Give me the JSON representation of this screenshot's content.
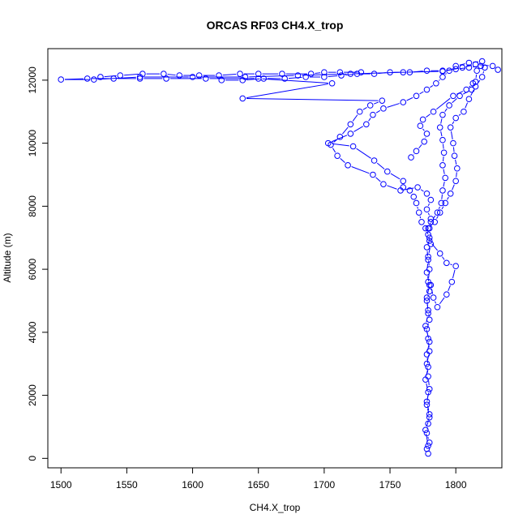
{
  "chart_data": {
    "type": "scatter",
    "title": "ORCAS RF03 CH4.X_trop",
    "xlabel": "CH4.X_trop",
    "ylabel": "Altitude (m)",
    "xlim": [
      1490,
      1835
    ],
    "ylim": [
      -300,
      13000
    ],
    "xticks": [
      1500,
      1550,
      1600,
      1650,
      1700,
      1750,
      1800
    ],
    "yticks": [
      0,
      2000,
      4000,
      6000,
      8000,
      10000,
      12000
    ],
    "grid": false,
    "legend": "none",
    "color": "#0000ff",
    "series": [
      {
        "values": [
          [
            1779,
            150
          ],
          [
            1778,
            300
          ],
          [
            1780,
            500
          ],
          [
            1778,
            800
          ],
          [
            1779,
            1100
          ],
          [
            1780,
            1400
          ],
          [
            1778,
            1800
          ],
          [
            1780,
            2200
          ],
          [
            1779,
            2600
          ],
          [
            1778,
            3000
          ],
          [
            1780,
            3400
          ],
          [
            1779,
            3800
          ],
          [
            1778,
            4100
          ],
          [
            1780,
            4400
          ],
          [
            1779,
            4700
          ],
          [
            1778,
            5000
          ],
          [
            1780,
            5300
          ],
          [
            1779,
            5600
          ],
          [
            1780,
            6000
          ],
          [
            1779,
            6400
          ],
          [
            1781,
            6800
          ],
          [
            1779,
            7100
          ],
          [
            1780,
            7300
          ],
          [
            1781,
            7600
          ],
          [
            1778,
            7900
          ],
          [
            1781,
            8200
          ],
          [
            1778,
            8400
          ],
          [
            1771,
            8600
          ],
          [
            1758,
            8500
          ],
          [
            1745,
            8700
          ],
          [
            1737,
            9000
          ],
          [
            1718,
            9300
          ],
          [
            1710,
            9600
          ],
          [
            1705,
            9950
          ],
          [
            1712,
            10200
          ],
          [
            1720,
            10600
          ],
          [
            1727,
            11000
          ],
          [
            1735,
            11200
          ],
          [
            1744,
            11350
          ],
          [
            1638,
            11420
          ],
          [
            1706,
            11900
          ],
          [
            1650,
            12050
          ],
          [
            1610,
            12050
          ],
          [
            1580,
            12050
          ],
          [
            1560,
            12050
          ],
          [
            1540,
            12050
          ],
          [
            1520,
            12050
          ],
          [
            1500,
            12020
          ],
          [
            1525,
            12020
          ],
          [
            1560,
            12100
          ],
          [
            1600,
            12100
          ],
          [
            1640,
            12100
          ],
          [
            1680,
            12150
          ],
          [
            1720,
            12200
          ],
          [
            1760,
            12250
          ],
          [
            1790,
            12280
          ],
          [
            1805,
            12400
          ],
          [
            1815,
            12500
          ],
          [
            1828,
            12450
          ],
          [
            1832,
            12330
          ]
        ]
      },
      {
        "values": [
          [
            1779,
            400
          ],
          [
            1777,
            900
          ],
          [
            1780,
            1300
          ],
          [
            1778,
            1700
          ],
          [
            1779,
            2100
          ],
          [
            1777,
            2500
          ],
          [
            1779,
            2900
          ],
          [
            1778,
            3300
          ],
          [
            1780,
            3700
          ],
          [
            1777,
            4200
          ],
          [
            1779,
            4600
          ],
          [
            1778,
            5100
          ],
          [
            1780,
            5500
          ],
          [
            1778,
            5900
          ],
          [
            1779,
            6300
          ],
          [
            1778,
            6700
          ],
          [
            1780,
            7000
          ],
          [
            1777,
            7300
          ],
          [
            1774,
            7500
          ],
          [
            1772,
            7800
          ],
          [
            1770,
            8100
          ],
          [
            1768,
            8300
          ],
          [
            1765,
            8500
          ],
          [
            1760,
            8600
          ],
          [
            1760,
            8800
          ],
          [
            1748,
            9100
          ],
          [
            1738,
            9450
          ],
          [
            1722,
            9900
          ],
          [
            1703,
            10000
          ],
          [
            1720,
            10300
          ],
          [
            1732,
            10600
          ],
          [
            1737,
            10900
          ],
          [
            1745,
            11100
          ],
          [
            1760,
            11300
          ],
          [
            1770,
            11500
          ],
          [
            1778,
            11700
          ],
          [
            1785,
            11900
          ],
          [
            1790,
            12100
          ],
          [
            1795,
            12300
          ],
          [
            1800,
            12450
          ],
          [
            1810,
            12550
          ],
          [
            1820,
            12600
          ]
        ]
      },
      {
        "values": [
          [
            1780,
            6900
          ],
          [
            1788,
            6500
          ],
          [
            1793,
            6200
          ],
          [
            1800,
            6100
          ],
          [
            1797,
            5600
          ],
          [
            1793,
            5200
          ],
          [
            1786,
            4800
          ],
          [
            1783,
            5100
          ],
          [
            1781,
            5500
          ]
        ]
      },
      {
        "values": [
          [
            1779,
            7300
          ],
          [
            1784,
            7500
          ],
          [
            1788,
            7800
          ],
          [
            1792,
            8100
          ],
          [
            1796,
            8400
          ],
          [
            1800,
            8800
          ],
          [
            1801,
            9200
          ],
          [
            1799,
            9600
          ],
          [
            1798,
            10000
          ],
          [
            1796,
            10500
          ],
          [
            1800,
            10800
          ],
          [
            1806,
            11000
          ],
          [
            1810,
            11400
          ],
          [
            1815,
            11800
          ],
          [
            1820,
            12100
          ],
          [
            1822,
            12400
          ]
        ]
      },
      {
        "values": [
          [
            1781,
            7500
          ],
          [
            1786,
            7800
          ],
          [
            1789,
            8100
          ],
          [
            1790,
            8500
          ],
          [
            1792,
            8900
          ],
          [
            1790,
            9300
          ],
          [
            1791,
            9700
          ],
          [
            1790,
            10100
          ],
          [
            1788,
            10500
          ],
          [
            1790,
            10900
          ],
          [
            1795,
            11200
          ],
          [
            1803,
            11500
          ],
          [
            1812,
            11700
          ],
          [
            1815,
            11950
          ],
          [
            1816,
            12300
          ]
        ]
      },
      {
        "values": [
          [
            1766,
            9550
          ],
          [
            1770,
            9750
          ],
          [
            1776,
            10050
          ],
          [
            1778,
            10300
          ],
          [
            1773,
            10550
          ],
          [
            1775,
            10750
          ],
          [
            1783,
            11000
          ],
          [
            1798,
            11500
          ],
          [
            1808,
            11700
          ],
          [
            1813,
            11900
          ]
        ]
      },
      {
        "values": [
          [
            1622,
            12000
          ],
          [
            1638,
            12000
          ],
          [
            1654,
            12050
          ],
          [
            1670,
            12050
          ],
          [
            1686,
            12100
          ],
          [
            1700,
            12100
          ],
          [
            1713,
            12150
          ],
          [
            1725,
            12200
          ],
          [
            1738,
            12200
          ],
          [
            1750,
            12250
          ],
          [
            1765,
            12250
          ],
          [
            1778,
            12300
          ],
          [
            1790,
            12300
          ],
          [
            1800,
            12350
          ],
          [
            1810,
            12400
          ],
          [
            1819,
            12450
          ]
        ]
      },
      {
        "values": [
          [
            1530,
            12100
          ],
          [
            1545,
            12150
          ],
          [
            1562,
            12200
          ],
          [
            1578,
            12200
          ],
          [
            1590,
            12150
          ],
          [
            1605,
            12150
          ],
          [
            1620,
            12150
          ],
          [
            1636,
            12200
          ],
          [
            1650,
            12200
          ],
          [
            1668,
            12200
          ],
          [
            1690,
            12200
          ],
          [
            1700,
            12250
          ],
          [
            1712,
            12250
          ],
          [
            1728,
            12250
          ]
        ]
      }
    ]
  }
}
